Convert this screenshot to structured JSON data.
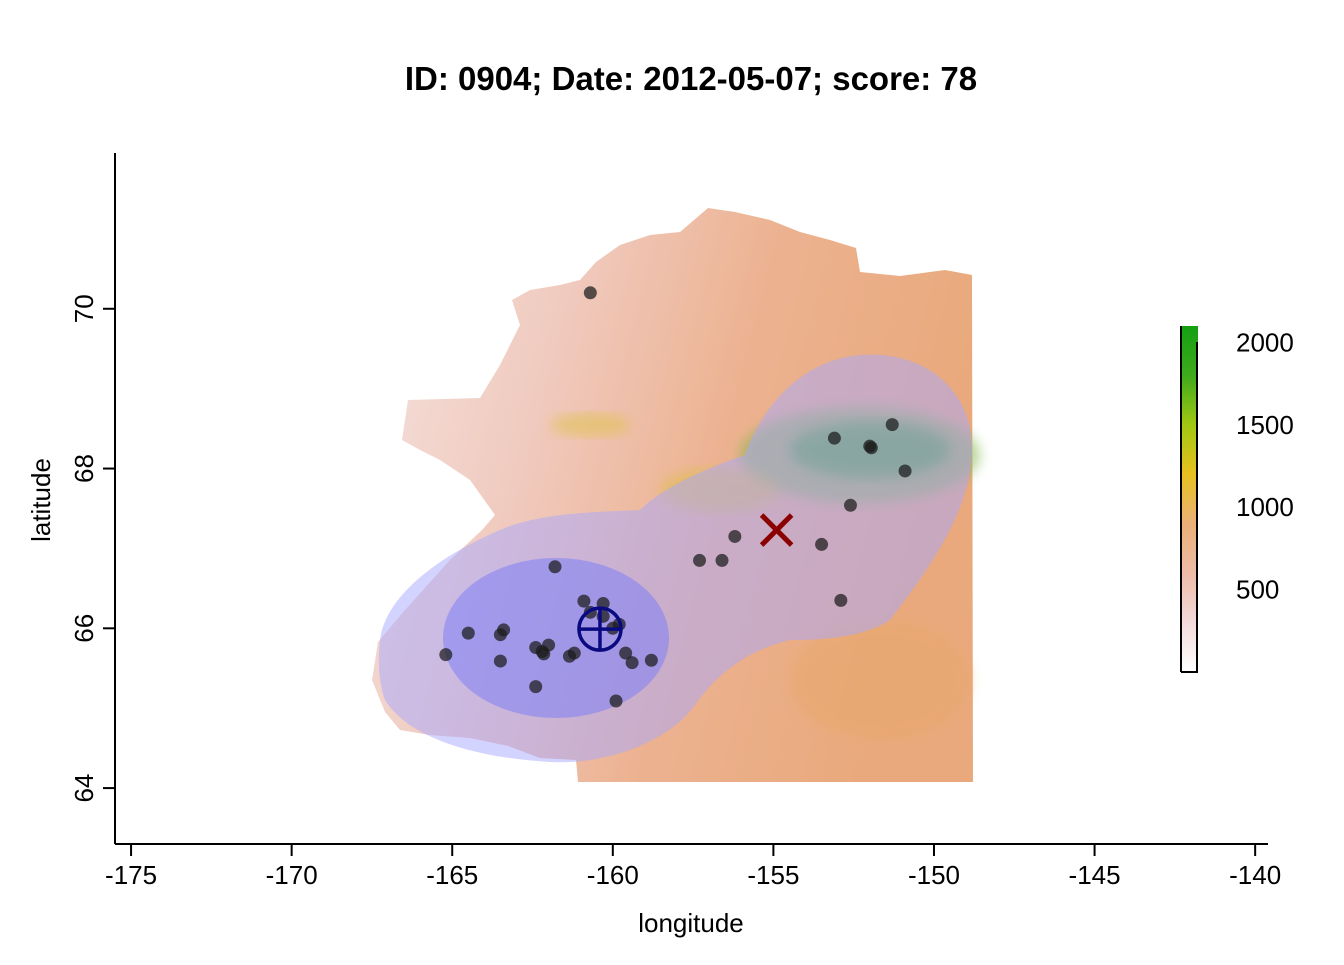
{
  "title": "ID: 0904;  Date: 2012-05-07;  score: 78",
  "chart_data": {
    "type": "map",
    "xlabel": "longitude",
    "ylabel": "latitude",
    "xlim": [
      -175.5,
      -139.6
    ],
    "ylim": [
      63.3,
      71.95
    ],
    "x_ticks": [
      -175,
      -170,
      -165,
      -160,
      -155,
      -150,
      -145,
      -140
    ],
    "y_ticks": [
      64,
      66,
      68,
      70
    ],
    "grid": false,
    "colorbar": {
      "label": "",
      "range": [
        0,
        2100
      ],
      "ticks": [
        500,
        1000,
        1500,
        2000
      ],
      "colors": [
        "#ffffff",
        "#f3dada",
        "#eebba6",
        "#eab077",
        "#e8c020",
        "#a0c812",
        "#3faa1c",
        "#12a012"
      ]
    },
    "points": [
      {
        "lon": -160.7,
        "lat": 70.2
      },
      {
        "lon": -151.3,
        "lat": 68.55
      },
      {
        "lon": -153.1,
        "lat": 68.38
      },
      {
        "lon": -152.0,
        "lat": 68.28
      },
      {
        "lon": -151.95,
        "lat": 68.26
      },
      {
        "lon": -150.9,
        "lat": 67.97
      },
      {
        "lon": -152.6,
        "lat": 67.54
      },
      {
        "lon": -156.2,
        "lat": 67.15
      },
      {
        "lon": -153.5,
        "lat": 67.05
      },
      {
        "lon": -157.3,
        "lat": 66.85
      },
      {
        "lon": -156.6,
        "lat": 66.85
      },
      {
        "lon": -161.8,
        "lat": 66.77
      },
      {
        "lon": -152.9,
        "lat": 66.35
      },
      {
        "lon": -160.9,
        "lat": 66.34
      },
      {
        "lon": -160.3,
        "lat": 66.31
      },
      {
        "lon": -160.7,
        "lat": 66.2
      },
      {
        "lon": -160.3,
        "lat": 66.15
      },
      {
        "lon": -159.8,
        "lat": 66.05
      },
      {
        "lon": -160.0,
        "lat": 66.0
      },
      {
        "lon": -163.4,
        "lat": 65.98
      },
      {
        "lon": -164.5,
        "lat": 65.94
      },
      {
        "lon": -163.5,
        "lat": 65.92
      },
      {
        "lon": -162.0,
        "lat": 65.79
      },
      {
        "lon": -162.4,
        "lat": 65.76
      },
      {
        "lon": -162.2,
        "lat": 65.71
      },
      {
        "lon": -161.2,
        "lat": 65.69
      },
      {
        "lon": -162.15,
        "lat": 65.68
      },
      {
        "lon": -159.6,
        "lat": 65.69
      },
      {
        "lon": -165.2,
        "lat": 65.67
      },
      {
        "lon": -161.35,
        "lat": 65.65
      },
      {
        "lon": -158.8,
        "lat": 65.6
      },
      {
        "lon": -163.5,
        "lat": 65.59
      },
      {
        "lon": -159.4,
        "lat": 65.57
      },
      {
        "lon": -162.4,
        "lat": 65.27
      },
      {
        "lon": -159.9,
        "lat": 65.09
      }
    ],
    "estimate_marker": {
      "symbol": "circle-cross",
      "lon": -160.4,
      "lat": 65.99,
      "color": "#0a0a80"
    },
    "true_marker": {
      "symbol": "x",
      "lon": -154.9,
      "lat": 67.23,
      "color": "#8b0000"
    },
    "range_colors": {
      "outer": "#a8a8ff",
      "inner": "#7f7ff5"
    }
  }
}
